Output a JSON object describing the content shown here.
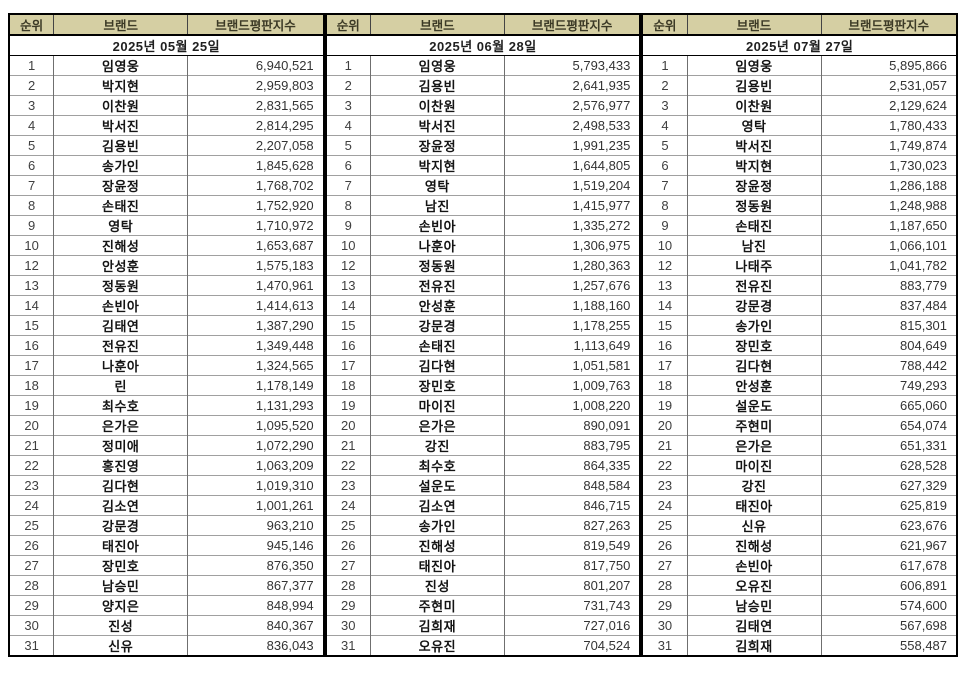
{
  "columns": {
    "rank": "순위",
    "brand": "브랜드",
    "index": "브랜드평판지수"
  },
  "colors": {
    "header_bg": "#d5cfa3",
    "header_text": "#3c3a26",
    "outer_border": "#000000",
    "row_line": "#a0a0a0",
    "column_line": "#6f6f6f",
    "body_text": "#333333"
  },
  "tables": [
    {
      "date": "2025년 05월 25일",
      "rows": [
        [
          "1",
          "임영웅",
          "6,940,521"
        ],
        [
          "2",
          "박지현",
          "2,959,803"
        ],
        [
          "3",
          "이찬원",
          "2,831,565"
        ],
        [
          "4",
          "박서진",
          "2,814,295"
        ],
        [
          "5",
          "김용빈",
          "2,207,058"
        ],
        [
          "6",
          "송가인",
          "1,845,628"
        ],
        [
          "7",
          "장윤정",
          "1,768,702"
        ],
        [
          "8",
          "손태진",
          "1,752,920"
        ],
        [
          "9",
          "영탁",
          "1,710,972"
        ],
        [
          "10",
          "진해성",
          "1,653,687"
        ],
        [
          "12",
          "안성훈",
          "1,575,183"
        ],
        [
          "13",
          "정동원",
          "1,470,961"
        ],
        [
          "14",
          "손빈아",
          "1,414,613"
        ],
        [
          "15",
          "김태연",
          "1,387,290"
        ],
        [
          "16",
          "전유진",
          "1,349,448"
        ],
        [
          "17",
          "나훈아",
          "1,324,565"
        ],
        [
          "18",
          "린",
          "1,178,149"
        ],
        [
          "19",
          "최수호",
          "1,131,293"
        ],
        [
          "20",
          "은가은",
          "1,095,520"
        ],
        [
          "21",
          "정미애",
          "1,072,290"
        ],
        [
          "22",
          "홍진영",
          "1,063,209"
        ],
        [
          "23",
          "김다현",
          "1,019,310"
        ],
        [
          "24",
          "김소연",
          "1,001,261"
        ],
        [
          "25",
          "강문경",
          "963,210"
        ],
        [
          "26",
          "태진아",
          "945,146"
        ],
        [
          "27",
          "장민호",
          "876,350"
        ],
        [
          "28",
          "남승민",
          "867,377"
        ],
        [
          "29",
          "양지은",
          "848,994"
        ],
        [
          "30",
          "진성",
          "840,367"
        ],
        [
          "31",
          "신유",
          "836,043"
        ]
      ]
    },
    {
      "date": "2025년 06월 28일",
      "rows": [
        [
          "1",
          "임영웅",
          "5,793,433"
        ],
        [
          "2",
          "김용빈",
          "2,641,935"
        ],
        [
          "3",
          "이찬원",
          "2,576,977"
        ],
        [
          "4",
          "박서진",
          "2,498,533"
        ],
        [
          "5",
          "장윤정",
          "1,991,235"
        ],
        [
          "6",
          "박지현",
          "1,644,805"
        ],
        [
          "7",
          "영탁",
          "1,519,204"
        ],
        [
          "8",
          "남진",
          "1,415,977"
        ],
        [
          "9",
          "손빈아",
          "1,335,272"
        ],
        [
          "10",
          "나훈아",
          "1,306,975"
        ],
        [
          "12",
          "정동원",
          "1,280,363"
        ],
        [
          "13",
          "전유진",
          "1,257,676"
        ],
        [
          "14",
          "안성훈",
          "1,188,160"
        ],
        [
          "15",
          "강문경",
          "1,178,255"
        ],
        [
          "16",
          "손태진",
          "1,113,649"
        ],
        [
          "17",
          "김다현",
          "1,051,581"
        ],
        [
          "18",
          "장민호",
          "1,009,763"
        ],
        [
          "19",
          "마이진",
          "1,008,220"
        ],
        [
          "20",
          "은가은",
          "890,091"
        ],
        [
          "21",
          "강진",
          "883,795"
        ],
        [
          "22",
          "최수호",
          "864,335"
        ],
        [
          "23",
          "설운도",
          "848,584"
        ],
        [
          "24",
          "김소연",
          "846,715"
        ],
        [
          "25",
          "송가인",
          "827,263"
        ],
        [
          "26",
          "진해성",
          "819,549"
        ],
        [
          "27",
          "태진아",
          "817,750"
        ],
        [
          "28",
          "진성",
          "801,207"
        ],
        [
          "29",
          "주현미",
          "731,743"
        ],
        [
          "30",
          "김희재",
          "727,016"
        ],
        [
          "31",
          "오유진",
          "704,524"
        ]
      ]
    },
    {
      "date": "2025년 07월 27일",
      "rows": [
        [
          "1",
          "임영웅",
          "5,895,866"
        ],
        [
          "2",
          "김용빈",
          "2,531,057"
        ],
        [
          "3",
          "이찬원",
          "2,129,624"
        ],
        [
          "4",
          "영탁",
          "1,780,433"
        ],
        [
          "5",
          "박서진",
          "1,749,874"
        ],
        [
          "6",
          "박지현",
          "1,730,023"
        ],
        [
          "7",
          "장윤정",
          "1,286,188"
        ],
        [
          "8",
          "정동원",
          "1,248,988"
        ],
        [
          "9",
          "손태진",
          "1,187,650"
        ],
        [
          "10",
          "남진",
          "1,066,101"
        ],
        [
          "12",
          "나태주",
          "1,041,782"
        ],
        [
          "13",
          "전유진",
          "883,779"
        ],
        [
          "14",
          "강문경",
          "837,484"
        ],
        [
          "15",
          "송가인",
          "815,301"
        ],
        [
          "16",
          "장민호",
          "804,649"
        ],
        [
          "17",
          "김다현",
          "788,442"
        ],
        [
          "18",
          "안성훈",
          "749,293"
        ],
        [
          "19",
          "설운도",
          "665,060"
        ],
        [
          "20",
          "주현미",
          "654,074"
        ],
        [
          "21",
          "은가은",
          "651,331"
        ],
        [
          "22",
          "마이진",
          "628,528"
        ],
        [
          "23",
          "강진",
          "627,329"
        ],
        [
          "24",
          "태진아",
          "625,819"
        ],
        [
          "25",
          "신유",
          "623,676"
        ],
        [
          "26",
          "진해성",
          "621,967"
        ],
        [
          "27",
          "손빈아",
          "617,678"
        ],
        [
          "28",
          "오유진",
          "606,891"
        ],
        [
          "29",
          "남승민",
          "574,600"
        ],
        [
          "30",
          "김태연",
          "567,698"
        ],
        [
          "31",
          "김희재",
          "558,487"
        ]
      ]
    }
  ]
}
